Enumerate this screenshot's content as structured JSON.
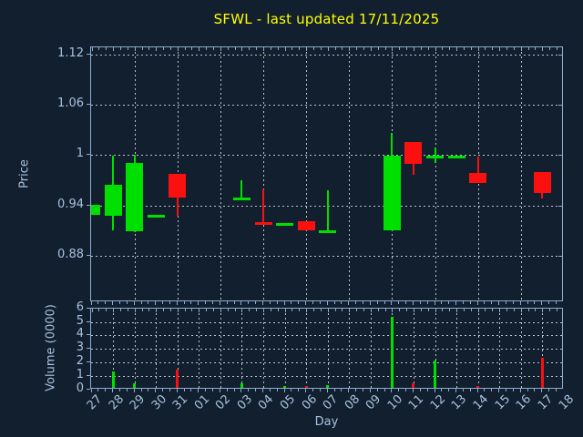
{
  "chart_data": {
    "type": "candlestick",
    "title": "SFWL - last updated 17/11/2025",
    "xlabel": "Day",
    "ylabel_price": "Price",
    "ylabel_volume": "Volume (0000)",
    "x_categories": [
      "27",
      "28",
      "29",
      "30",
      "31",
      "01",
      "02",
      "03",
      "04",
      "05",
      "06",
      "07",
      "08",
      "09",
      "10",
      "11",
      "12",
      "13",
      "14",
      "15",
      "16",
      "17",
      "18"
    ],
    "price_ticks": [
      {
        "label": "0.88",
        "value": 0.88
      },
      {
        "label": "0.94",
        "value": 0.94
      },
      {
        "label": "1",
        "value": 1.0
      },
      {
        "label": "1.06",
        "value": 1.06
      },
      {
        "label": "1.12",
        "value": 1.12
      }
    ],
    "volume_ticks": [
      {
        "label": "0",
        "value": 0
      },
      {
        "label": "1",
        "value": 1
      },
      {
        "label": "2",
        "value": 2
      },
      {
        "label": "3",
        "value": 3
      },
      {
        "label": "4",
        "value": 4
      },
      {
        "label": "5",
        "value": 5
      },
      {
        "label": "6",
        "value": 6
      }
    ],
    "price_range": [
      0.824,
      1.128
    ],
    "volume_range": [
      0,
      6
    ],
    "grid": {
      "price_vertical_days": [
        "29",
        "31",
        "02",
        "04",
        "06",
        "08",
        "10",
        "12",
        "14",
        "16",
        "18"
      ],
      "volume_vertical_days": [
        "28",
        "29",
        "30",
        "31",
        "01",
        "02",
        "03",
        "04",
        "05",
        "06",
        "07",
        "08",
        "09",
        "10",
        "11",
        "12",
        "13",
        "14",
        "15",
        "16",
        "17"
      ],
      "price_horizontal_values": [
        0.88,
        0.94,
        1.0,
        1.06,
        1.12
      ],
      "volume_horizontal_values": [
        1,
        2,
        3,
        4,
        5
      ]
    },
    "candles": [
      {
        "day": "27",
        "open": 0.929,
        "high": 0.941,
        "low": 0.929,
        "close": 0.941,
        "volume": 0.0,
        "direction": "up"
      },
      {
        "day": "28",
        "open": 0.928,
        "high": 0.999,
        "low": 0.91,
        "close": 0.964,
        "volume": 1.35,
        "direction": "up"
      },
      {
        "day": "29",
        "open": 0.909,
        "high": 1.0,
        "low": 0.908,
        "close": 0.99,
        "volume": 0.5,
        "direction": "up"
      },
      {
        "day": "30",
        "open": 0.929,
        "high": 0.929,
        "low": 0.929,
        "close": 0.929,
        "volume": 0.13,
        "direction": "up"
      },
      {
        "day": "31",
        "open": 0.977,
        "high": 0.977,
        "low": 0.928,
        "close": 0.949,
        "volume": 1.5,
        "direction": "down"
      },
      {
        "day": "03",
        "open": 0.949,
        "high": 0.97,
        "low": 0.949,
        "close": 0.949,
        "volume": 0.5,
        "direction": "up"
      },
      {
        "day": "04",
        "open": 0.92,
        "high": 0.959,
        "low": 0.92,
        "close": 0.92,
        "volume": 0.15,
        "direction": "down"
      },
      {
        "day": "05",
        "open": 0.919,
        "high": 0.919,
        "low": 0.919,
        "close": 0.919,
        "volume": 0.27,
        "direction": "up"
      },
      {
        "day": "06",
        "open": 0.921,
        "high": 0.921,
        "low": 0.91,
        "close": 0.91,
        "volume": 0.3,
        "direction": "down"
      },
      {
        "day": "07",
        "open": 0.91,
        "high": 0.958,
        "low": 0.91,
        "close": 0.91,
        "volume": 0.34,
        "direction": "up"
      },
      {
        "day": "10",
        "open": 0.91,
        "high": 1.026,
        "low": 0.91,
        "close": 0.999,
        "volume": 5.4,
        "direction": "up"
      },
      {
        "day": "11",
        "open": 1.016,
        "high": 1.016,
        "low": 0.976,
        "close": 0.989,
        "volume": 0.5,
        "direction": "down"
      },
      {
        "day": "12",
        "open": 0.999,
        "high": 1.009,
        "low": 0.99,
        "close": 0.999,
        "volume": 2.15,
        "direction": "up"
      },
      {
        "day": "13",
        "open": 0.999,
        "high": 0.999,
        "low": 0.999,
        "close": 0.999,
        "volume": 0.05,
        "direction": "up"
      },
      {
        "day": "14",
        "open": 0.979,
        "high": 0.998,
        "low": 0.967,
        "close": 0.967,
        "volume": 0.3,
        "direction": "down"
      },
      {
        "day": "17",
        "open": 0.98,
        "high": 0.98,
        "low": 0.948,
        "close": 0.955,
        "volume": 2.35,
        "direction": "down"
      }
    ],
    "colors": {
      "up": "#00e000",
      "down": "#fb1010",
      "background": "#121f2e",
      "frame": "#8caccf",
      "grid": "#bec3c9",
      "title": "#ffff00",
      "axis_text": "#a8c2e0"
    }
  }
}
